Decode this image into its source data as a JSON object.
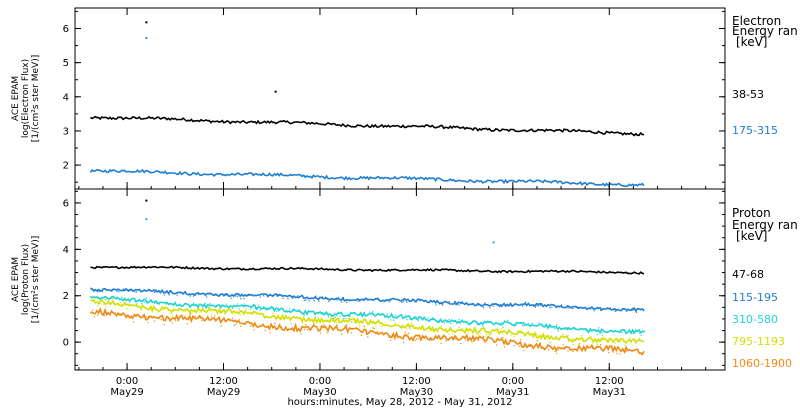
{
  "chart_data": [
    {
      "type": "scatter",
      "panel": "electron",
      "ylabel_lines": [
        "ACE EPAM",
        "log(Electron Flux)",
        "[1/(cm²s ster MeV)]"
      ],
      "legend_title": [
        "Electron",
        "Energy ran",
        "[keV]"
      ],
      "ylim": [
        1.3,
        6.6
      ],
      "yticks": [
        "2",
        "3",
        "4",
        "5",
        "6"
      ],
      "series": [
        {
          "name": "38-53",
          "color": "#000000",
          "start": 3.42,
          "end": 2.92,
          "jitter": 0.04,
          "spikes": [
            {
              "t": 0.1,
              "v": 6.18
            },
            {
              "t": 0.1,
              "v": 5.72,
              "color": "#1e90ff"
            },
            {
              "t": 0.77,
              "v": 4.15
            }
          ]
        },
        {
          "name": "175-315",
          "color": "#1e7fd2",
          "start": 1.85,
          "end": 1.42,
          "jitter": 0.04,
          "spikes": []
        }
      ]
    },
    {
      "type": "scatter",
      "panel": "proton",
      "ylabel_lines": [
        "ACE EPAM",
        "log(Proton Flux)",
        "[1/(cm²s ster MeV)]"
      ],
      "legend_title": [
        "Proton",
        "Energy ran",
        "[keV]"
      ],
      "ylim": [
        -1.2,
        6.6
      ],
      "yticks": [
        "0",
        "2",
        "4",
        "6"
      ],
      "series": [
        {
          "name": "47-68",
          "color": "#000000",
          "start": 3.25,
          "end": 3.0,
          "jitter": 0.04,
          "spikes": [
            {
              "t": 0.1,
              "v": 6.1
            },
            {
              "t": 0.1,
              "v": 5.3,
              "color": "#20c0c0"
            },
            {
              "t": 1.9,
              "v": 4.3,
              "color": "#20c0c0"
            }
          ]
        },
        {
          "name": "115-195",
          "color": "#1e7fd2",
          "start": 2.3,
          "end": 1.4,
          "jitter": 0.06,
          "spikes": []
        },
        {
          "name": "310-580",
          "color": "#20d2d2",
          "start": 1.95,
          "end": 0.4,
          "jitter": 0.08,
          "spikes": []
        },
        {
          "name": "795-1193",
          "color": "#d2e000",
          "start": 1.75,
          "end": -0.05,
          "jitter": 0.1,
          "spikes": []
        },
        {
          "name": "1060-1900",
          "color": "#ee8a12",
          "start": 1.35,
          "end": -0.45,
          "jitter": 0.12,
          "spikes": []
        }
      ]
    }
  ],
  "x_axis": {
    "ticks": [
      {
        "day": 0,
        "time": "0:00",
        "date": "May29"
      },
      {
        "day": 0.5,
        "time": "12:00",
        "date": "May29"
      },
      {
        "day": 1.0,
        "time": "0:00",
        "date": "May30"
      },
      {
        "day": 1.5,
        "time": "12:00",
        "date": "May30"
      },
      {
        "day": 2.0,
        "time": "0:00",
        "date": "May31"
      },
      {
        "day": 2.5,
        "time": "12:00",
        "date": "May31"
      }
    ],
    "label": "hours:minutes, May 28, 2012 - May 31, 2012"
  }
}
